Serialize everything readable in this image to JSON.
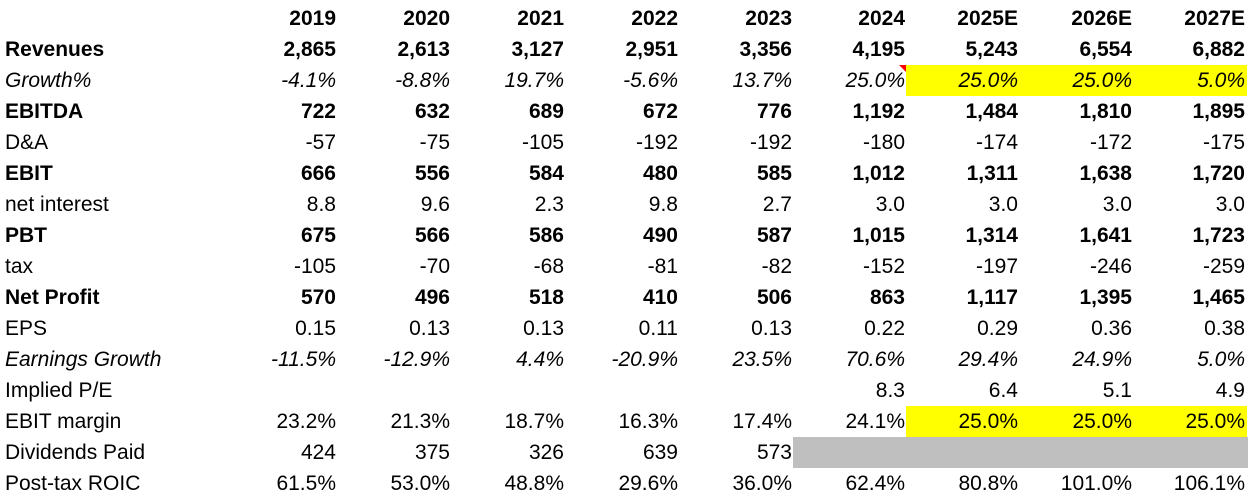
{
  "header": [
    "2019",
    "2020",
    "2021",
    "2022",
    "2023",
    "2024",
    "2025E",
    "2026E",
    "2027E"
  ],
  "rows": [
    {
      "label": "Revenues",
      "values": [
        "2,865",
        "2,613",
        "3,127",
        "2,951",
        "3,356",
        "4,195",
        "5,243",
        "6,554",
        "6,882"
      ]
    },
    {
      "label": "Growth%",
      "values": [
        "-4.1%",
        "-8.8%",
        "19.7%",
        "-5.6%",
        "13.7%",
        "25.0%",
        "25.0%",
        "25.0%",
        "5.0%"
      ]
    },
    {
      "label": "EBITDA",
      "values": [
        "722",
        "632",
        "689",
        "672",
        "776",
        "1,192",
        "1,484",
        "1,810",
        "1,895"
      ]
    },
    {
      "label": "D&A",
      "values": [
        "-57",
        "-75",
        "-105",
        "-192",
        "-192",
        "-180",
        "-174",
        "-172",
        "-175"
      ]
    },
    {
      "label": "EBIT",
      "values": [
        "666",
        "556",
        "584",
        "480",
        "585",
        "1,012",
        "1,311",
        "1,638",
        "1,720"
      ]
    },
    {
      "label": "net interest",
      "values": [
        "8.8",
        "9.6",
        "2.3",
        "9.8",
        "2.7",
        "3.0",
        "3.0",
        "3.0",
        "3.0"
      ]
    },
    {
      "label": "PBT",
      "values": [
        "675",
        "566",
        "586",
        "490",
        "587",
        "1,015",
        "1,314",
        "1,641",
        "1,723"
      ]
    },
    {
      "label": "tax",
      "values": [
        "-105",
        "-70",
        "-68",
        "-81",
        "-82",
        "-152",
        "-197",
        "-246",
        "-259"
      ]
    },
    {
      "label": "Net Profit",
      "values": [
        "570",
        "496",
        "518",
        "410",
        "506",
        "863",
        "1,117",
        "1,395",
        "1,465"
      ]
    },
    {
      "label": "EPS",
      "values": [
        "0.15",
        "0.13",
        "0.13",
        "0.11",
        "0.13",
        "0.22",
        "0.29",
        "0.36",
        "0.38"
      ]
    },
    {
      "label": "Earnings Growth",
      "values": [
        "-11.5%",
        "-12.9%",
        "4.4%",
        "-20.9%",
        "23.5%",
        "70.6%",
        "29.4%",
        "24.9%",
        "5.0%"
      ]
    },
    {
      "label": "Implied P/E",
      "values": [
        "",
        "",
        "",
        "",
        "",
        "8.3",
        "6.4",
        "5.1",
        "4.9"
      ]
    },
    {
      "label": "EBIT margin",
      "values": [
        "23.2%",
        "21.3%",
        "18.7%",
        "16.3%",
        "17.4%",
        "24.1%",
        "25.0%",
        "25.0%",
        "25.0%"
      ]
    },
    {
      "label": "Dividends Paid",
      "values": [
        "424",
        "375",
        "326",
        "639",
        "573",
        "",
        "",
        "",
        ""
      ]
    },
    {
      "label": "Post-tax ROIC",
      "values": [
        "61.5%",
        "53.0%",
        "48.8%",
        "29.6%",
        "36.0%",
        "62.4%",
        "80.8%",
        "101.0%",
        "106.1%"
      ]
    }
  ],
  "highlight_colors": {
    "input": "#ffff00",
    "blank": "#bfbfbf",
    "comment_marker": "#ff0000"
  }
}
